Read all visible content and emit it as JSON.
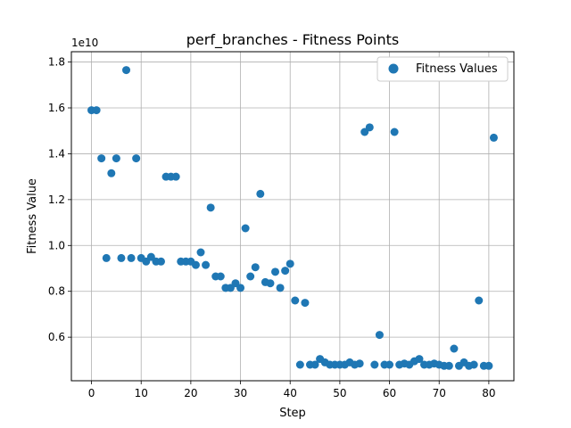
{
  "chart_data": {
    "type": "scatter",
    "title": "perf_branches - Fitness Points",
    "xlabel": "Step",
    "ylabel": "Fitness Value",
    "y_scale_label": "1e10",
    "xlim": [
      -4.05,
      85.05
    ],
    "ylim": [
      0.41,
      1.845
    ],
    "x_ticks": [
      0,
      10,
      20,
      30,
      40,
      50,
      60,
      70,
      80
    ],
    "y_ticks": [
      0.6,
      0.8,
      1.0,
      1.2,
      1.4,
      1.6,
      1.8
    ],
    "y_tick_labels": [
      "0.6",
      "0.8",
      "1.0",
      "1.2",
      "1.4",
      "1.6",
      "1.8"
    ],
    "grid": true,
    "legend_position": "top-right",
    "marker_color": "#1f77b4",
    "series": [
      {
        "name": "Fitness Values",
        "points": [
          [
            0,
            1.59
          ],
          [
            1,
            1.59
          ],
          [
            2,
            1.38
          ],
          [
            3,
            0.945
          ],
          [
            4,
            1.315
          ],
          [
            5,
            1.38
          ],
          [
            6,
            0.945
          ],
          [
            7,
            1.765
          ],
          [
            8,
            0.945
          ],
          [
            9,
            1.38
          ],
          [
            10,
            0.945
          ],
          [
            11,
            0.93
          ],
          [
            12,
            0.95
          ],
          [
            13,
            0.93
          ],
          [
            14,
            0.93
          ],
          [
            15,
            1.3
          ],
          [
            16,
            1.3
          ],
          [
            17,
            1.3
          ],
          [
            18,
            0.93
          ],
          [
            19,
            0.93
          ],
          [
            20,
            0.93
          ],
          [
            21,
            0.915
          ],
          [
            22,
            0.97
          ],
          [
            23,
            0.915
          ],
          [
            24,
            1.165
          ],
          [
            25,
            0.865
          ],
          [
            26,
            0.865
          ],
          [
            27,
            0.815
          ],
          [
            28,
            0.815
          ],
          [
            29,
            0.835
          ],
          [
            30,
            0.815
          ],
          [
            31,
            1.075
          ],
          [
            32,
            0.865
          ],
          [
            33,
            0.905
          ],
          [
            34,
            1.225
          ],
          [
            35,
            0.84
          ],
          [
            36,
            0.835
          ],
          [
            37,
            0.885
          ],
          [
            38,
            0.815
          ],
          [
            39,
            0.89
          ],
          [
            40,
            0.92
          ],
          [
            41,
            0.76
          ],
          [
            42,
            0.48
          ],
          [
            43,
            0.75
          ],
          [
            44,
            0.48
          ],
          [
            45,
            0.48
          ],
          [
            46,
            0.505
          ],
          [
            47,
            0.49
          ],
          [
            48,
            0.48
          ],
          [
            49,
            0.48
          ],
          [
            50,
            0.48
          ],
          [
            51,
            0.48
          ],
          [
            52,
            0.49
          ],
          [
            53,
            0.48
          ],
          [
            54,
            0.485
          ],
          [
            55,
            1.495
          ],
          [
            56,
            1.515
          ],
          [
            57,
            0.48
          ],
          [
            58,
            0.61
          ],
          [
            59,
            0.48
          ],
          [
            60,
            0.48
          ],
          [
            61,
            1.495
          ],
          [
            62,
            0.48
          ],
          [
            63,
            0.485
          ],
          [
            64,
            0.48
          ],
          [
            65,
            0.495
          ],
          [
            66,
            0.505
          ],
          [
            67,
            0.48
          ],
          [
            68,
            0.48
          ],
          [
            69,
            0.485
          ],
          [
            70,
            0.48
          ],
          [
            71,
            0.475
          ],
          [
            72,
            0.475
          ],
          [
            73,
            0.55
          ],
          [
            74,
            0.475
          ],
          [
            75,
            0.49
          ],
          [
            76,
            0.475
          ],
          [
            77,
            0.48
          ],
          [
            78,
            0.76
          ],
          [
            79,
            0.475
          ],
          [
            80,
            0.475
          ],
          [
            81,
            1.47
          ]
        ]
      }
    ]
  }
}
